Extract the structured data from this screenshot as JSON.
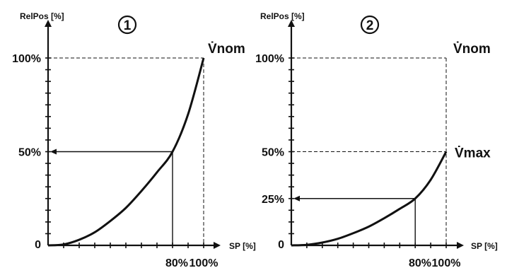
{
  "chart_data": [
    {
      "type": "line",
      "panel_label": "1",
      "ylabel": "RelPos [%]",
      "xlabel": "SP [%]",
      "xlim": [
        0,
        100
      ],
      "ylim": [
        0,
        100
      ],
      "y_ticks": [
        {
          "value": 0,
          "label": "0"
        },
        {
          "value": 50,
          "label": "50%"
        },
        {
          "value": 100,
          "label": "100%"
        }
      ],
      "x_ticks": [
        {
          "value": 80,
          "label": "80%"
        },
        {
          "value": 100,
          "label": "100%"
        }
      ],
      "series": [
        {
          "x": [
            0,
            10,
            20,
            30,
            40,
            50,
            60,
            70,
            80,
            90,
            100
          ],
          "y": [
            0,
            0.5,
            3,
            7,
            13,
            20,
            29,
            39,
            50,
            70,
            100
          ]
        }
      ],
      "reference_point": {
        "x": 80,
        "y": 50
      },
      "end_annotation": {
        "text": "V̇nom",
        "x": 100,
        "y": 100
      }
    },
    {
      "type": "line",
      "panel_label": "2",
      "ylabel": "RelPos [%]",
      "xlabel": "SP [%]",
      "xlim": [
        0,
        100
      ],
      "ylim": [
        0,
        100
      ],
      "y_ticks": [
        {
          "value": 0,
          "label": "0"
        },
        {
          "value": 25,
          "label": "25%"
        },
        {
          "value": 50,
          "label": "50%"
        },
        {
          "value": 100,
          "label": "100%"
        }
      ],
      "x_ticks": [
        {
          "value": 80,
          "label": "80%"
        },
        {
          "value": 100,
          "label": "100%"
        }
      ],
      "series": [
        {
          "x": [
            0,
            10,
            20,
            30,
            40,
            50,
            60,
            70,
            80,
            90,
            100
          ],
          "y": [
            0,
            0.3,
            1.5,
            3.5,
            6.5,
            10,
            14.5,
            19.5,
            25,
            35,
            50
          ]
        }
      ],
      "reference_point": {
        "x": 80,
        "y": 25
      },
      "top_annotation": {
        "text": "V̇nom",
        "x": 100,
        "y": 100
      },
      "end_annotation": {
        "text": "V̇max",
        "x": 100,
        "y": 50
      }
    }
  ]
}
